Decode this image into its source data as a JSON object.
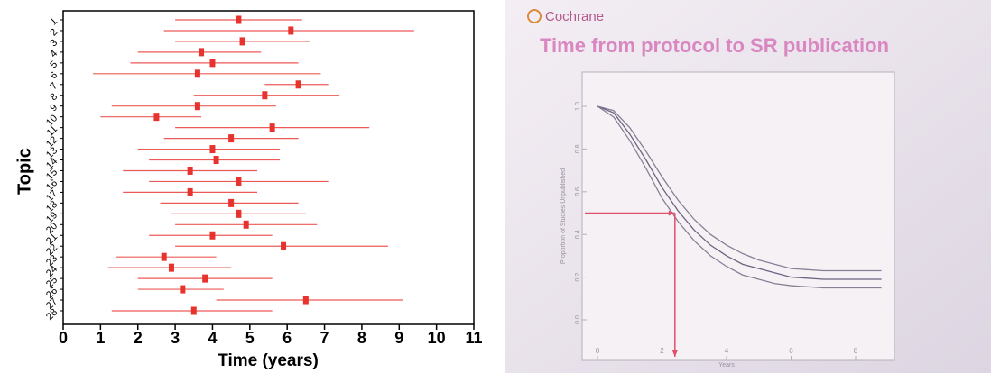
{
  "chart_data": [
    {
      "type": "forest",
      "xlabel": "Time (years)",
      "ylabel": "Topic",
      "categories": [
        "1",
        "2",
        "3",
        "4",
        "5",
        "6",
        "7",
        "8",
        "9",
        "10",
        "11",
        "12",
        "13",
        "14",
        "15",
        "16",
        "17",
        "18",
        "19",
        "20",
        "21",
        "22",
        "23",
        "24",
        "25",
        "26",
        "27",
        "28"
      ],
      "values": [
        4.7,
        6.1,
        4.8,
        3.7,
        4.0,
        3.6,
        6.3,
        5.4,
        3.6,
        2.5,
        5.6,
        4.5,
        4.0,
        4.1,
        3.4,
        4.7,
        3.4,
        4.5,
        4.7,
        4.9,
        4.0,
        5.9,
        2.7,
        2.9,
        3.8,
        3.2,
        6.5,
        3.5
      ],
      "lower": [
        3.0,
        2.7,
        3.0,
        2.0,
        1.8,
        0.8,
        5.4,
        3.5,
        1.3,
        1.0,
        3.0,
        2.7,
        2.0,
        2.3,
        1.6,
        2.3,
        1.6,
        2.6,
        2.9,
        3.0,
        2.3,
        3.0,
        1.4,
        1.2,
        2.0,
        2.0,
        4.1,
        1.3
      ],
      "upper": [
        6.4,
        9.4,
        6.6,
        5.3,
        6.3,
        6.9,
        7.1,
        7.4,
        5.7,
        3.7,
        8.2,
        6.3,
        5.8,
        5.8,
        5.2,
        7.1,
        5.2,
        6.3,
        6.5,
        6.8,
        5.6,
        8.7,
        4.1,
        4.5,
        5.6,
        4.3,
        9.1,
        5.6
      ],
      "color": "#e8322e",
      "xlim": [
        0,
        11
      ],
      "xticks": [
        0,
        1,
        2,
        3,
        4,
        5,
        6,
        7,
        8,
        9,
        10,
        11
      ]
    },
    {
      "type": "line",
      "logo": "Cochrane",
      "title": "Time from protocol to SR publication",
      "xlabel": "Years",
      "ylabel": "Proportion of Studies Unpublished",
      "x": [
        0,
        0.5,
        1,
        1.5,
        2,
        2.5,
        3,
        3.5,
        4,
        4.5,
        5,
        5.5,
        6,
        7,
        8,
        8.8
      ],
      "series": [
        {
          "color": "#8a7f96",
          "values": [
            1,
            0.98,
            0.9,
            0.79,
            0.67,
            0.56,
            0.47,
            0.4,
            0.35,
            0.31,
            0.28,
            0.26,
            0.24,
            0.23,
            0.23,
            0.23
          ]
        },
        {
          "color": "#6f6280",
          "values": [
            1,
            0.97,
            0.87,
            0.75,
            0.62,
            0.51,
            0.42,
            0.35,
            0.3,
            0.26,
            0.24,
            0.22,
            0.2,
            0.19,
            0.19,
            0.19
          ]
        },
        {
          "color": "#8a7f96",
          "values": [
            1,
            0.95,
            0.84,
            0.71,
            0.57,
            0.46,
            0.37,
            0.3,
            0.25,
            0.21,
            0.19,
            0.17,
            0.16,
            0.15,
            0.15,
            0.15
          ]
        }
      ],
      "marker": {
        "x": 2.4,
        "y": 0.5,
        "color": "#e0506a"
      },
      "xlim": [
        0,
        8
      ],
      "xticks": [
        0,
        2,
        4,
        6,
        8
      ],
      "ylim": [
        0,
        1
      ],
      "yticks": [
        {
          "value": 0,
          "label": "0.0"
        },
        {
          "value": 0.2,
          "label": "0.2"
        },
        {
          "value": 0.4,
          "label": "0.4"
        },
        {
          "value": 0.6,
          "label": "0.6"
        },
        {
          "value": 0.8,
          "label": "0.8"
        },
        {
          "value": 1,
          "label": "1.0"
        }
      ]
    }
  ]
}
